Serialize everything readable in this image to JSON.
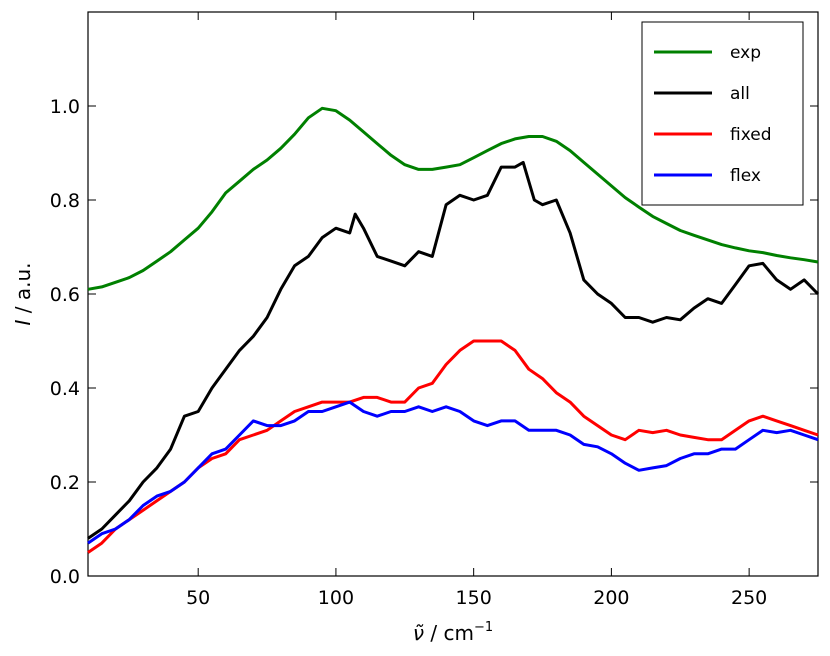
{
  "chart_data": {
    "type": "line",
    "xlabel": {
      "italic": "ν̃",
      "rest": " / cm",
      "sup": "−1"
    },
    "ylabel": {
      "italic": "I",
      "rest": " / a.u."
    },
    "xlim": [
      10,
      275
    ],
    "ylim": [
      0.0,
      1.2
    ],
    "xticks": [
      50,
      100,
      150,
      200,
      250
    ],
    "yticks": [
      0.0,
      0.2,
      0.4,
      0.6,
      0.8,
      1.0
    ],
    "ytick_labels": [
      "0.0",
      "0.2",
      "0.4",
      "0.6",
      "0.8",
      "1.0"
    ],
    "grid": false,
    "legend_position": "top-right",
    "series": [
      {
        "name": "exp",
        "color": "#008000",
        "points": [
          [
            10,
            0.61
          ],
          [
            15,
            0.615
          ],
          [
            20,
            0.625
          ],
          [
            25,
            0.635
          ],
          [
            30,
            0.65
          ],
          [
            35,
            0.67
          ],
          [
            40,
            0.69
          ],
          [
            45,
            0.715
          ],
          [
            50,
            0.74
          ],
          [
            55,
            0.775
          ],
          [
            60,
            0.815
          ],
          [
            65,
            0.84
          ],
          [
            70,
            0.865
          ],
          [
            75,
            0.885
          ],
          [
            80,
            0.91
          ],
          [
            85,
            0.94
          ],
          [
            90,
            0.975
          ],
          [
            95,
            0.995
          ],
          [
            100,
            0.99
          ],
          [
            105,
            0.97
          ],
          [
            110,
            0.945
          ],
          [
            115,
            0.92
          ],
          [
            120,
            0.895
          ],
          [
            125,
            0.875
          ],
          [
            130,
            0.865
          ],
          [
            135,
            0.865
          ],
          [
            140,
            0.87
          ],
          [
            145,
            0.875
          ],
          [
            150,
            0.89
          ],
          [
            155,
            0.905
          ],
          [
            160,
            0.92
          ],
          [
            165,
            0.93
          ],
          [
            170,
            0.935
          ],
          [
            175,
            0.935
          ],
          [
            180,
            0.925
          ],
          [
            185,
            0.905
          ],
          [
            190,
            0.88
          ],
          [
            195,
            0.855
          ],
          [
            200,
            0.83
          ],
          [
            205,
            0.805
          ],
          [
            210,
            0.785
          ],
          [
            215,
            0.765
          ],
          [
            220,
            0.75
          ],
          [
            225,
            0.735
          ],
          [
            230,
            0.725
          ],
          [
            235,
            0.715
          ],
          [
            240,
            0.705
          ],
          [
            245,
            0.698
          ],
          [
            250,
            0.692
          ],
          [
            255,
            0.688
          ],
          [
            260,
            0.682
          ],
          [
            265,
            0.677
          ],
          [
            270,
            0.673
          ],
          [
            275,
            0.668
          ]
        ]
      },
      {
        "name": "all",
        "color": "#000000",
        "points": [
          [
            10,
            0.08
          ],
          [
            15,
            0.1
          ],
          [
            20,
            0.13
          ],
          [
            25,
            0.16
          ],
          [
            30,
            0.2
          ],
          [
            35,
            0.23
          ],
          [
            40,
            0.27
          ],
          [
            45,
            0.34
          ],
          [
            50,
            0.35
          ],
          [
            55,
            0.4
          ],
          [
            60,
            0.44
          ],
          [
            65,
            0.48
          ],
          [
            70,
            0.51
          ],
          [
            75,
            0.55
          ],
          [
            80,
            0.61
          ],
          [
            85,
            0.66
          ],
          [
            90,
            0.68
          ],
          [
            95,
            0.72
          ],
          [
            100,
            0.74
          ],
          [
            105,
            0.73
          ],
          [
            107,
            0.77
          ],
          [
            110,
            0.74
          ],
          [
            115,
            0.68
          ],
          [
            120,
            0.67
          ],
          [
            125,
            0.66
          ],
          [
            130,
            0.69
          ],
          [
            135,
            0.68
          ],
          [
            140,
            0.79
          ],
          [
            145,
            0.81
          ],
          [
            150,
            0.8
          ],
          [
            155,
            0.81
          ],
          [
            160,
            0.87
          ],
          [
            165,
            0.87
          ],
          [
            168,
            0.88
          ],
          [
            172,
            0.8
          ],
          [
            175,
            0.79
          ],
          [
            180,
            0.8
          ],
          [
            185,
            0.73
          ],
          [
            190,
            0.63
          ],
          [
            195,
            0.6
          ],
          [
            200,
            0.58
          ],
          [
            205,
            0.55
          ],
          [
            210,
            0.55
          ],
          [
            215,
            0.54
          ],
          [
            220,
            0.55
          ],
          [
            225,
            0.545
          ],
          [
            230,
            0.57
          ],
          [
            235,
            0.59
          ],
          [
            240,
            0.58
          ],
          [
            245,
            0.62
          ],
          [
            250,
            0.66
          ],
          [
            255,
            0.665
          ],
          [
            260,
            0.63
          ],
          [
            265,
            0.61
          ],
          [
            270,
            0.63
          ],
          [
            275,
            0.6
          ]
        ]
      },
      {
        "name": "fixed",
        "color": "#ff0000",
        "points": [
          [
            10,
            0.05
          ],
          [
            15,
            0.07
          ],
          [
            20,
            0.1
          ],
          [
            25,
            0.12
          ],
          [
            30,
            0.14
          ],
          [
            35,
            0.16
          ],
          [
            40,
            0.18
          ],
          [
            45,
            0.2
          ],
          [
            50,
            0.23
          ],
          [
            55,
            0.25
          ],
          [
            60,
            0.26
          ],
          [
            65,
            0.29
          ],
          [
            70,
            0.3
          ],
          [
            75,
            0.31
          ],
          [
            80,
            0.33
          ],
          [
            85,
            0.35
          ],
          [
            90,
            0.36
          ],
          [
            95,
            0.37
          ],
          [
            100,
            0.37
          ],
          [
            105,
            0.37
          ],
          [
            110,
            0.38
          ],
          [
            115,
            0.38
          ],
          [
            120,
            0.37
          ],
          [
            125,
            0.37
          ],
          [
            130,
            0.4
          ],
          [
            135,
            0.41
          ],
          [
            140,
            0.45
          ],
          [
            145,
            0.48
          ],
          [
            150,
            0.5
          ],
          [
            155,
            0.5
          ],
          [
            160,
            0.5
          ],
          [
            165,
            0.48
          ],
          [
            170,
            0.44
          ],
          [
            175,
            0.42
          ],
          [
            180,
            0.39
          ],
          [
            185,
            0.37
          ],
          [
            190,
            0.34
          ],
          [
            195,
            0.32
          ],
          [
            200,
            0.3
          ],
          [
            205,
            0.29
          ],
          [
            210,
            0.31
          ],
          [
            215,
            0.305
          ],
          [
            220,
            0.31
          ],
          [
            225,
            0.3
          ],
          [
            230,
            0.295
          ],
          [
            235,
            0.29
          ],
          [
            240,
            0.29
          ],
          [
            245,
            0.31
          ],
          [
            250,
            0.33
          ],
          [
            255,
            0.34
          ],
          [
            260,
            0.33
          ],
          [
            265,
            0.32
          ],
          [
            270,
            0.31
          ],
          [
            275,
            0.3
          ]
        ]
      },
      {
        "name": "flex",
        "color": "#0000ff",
        "points": [
          [
            10,
            0.07
          ],
          [
            15,
            0.09
          ],
          [
            20,
            0.1
          ],
          [
            25,
            0.12
          ],
          [
            30,
            0.15
          ],
          [
            35,
            0.17
          ],
          [
            40,
            0.18
          ],
          [
            45,
            0.2
          ],
          [
            50,
            0.23
          ],
          [
            55,
            0.26
          ],
          [
            60,
            0.27
          ],
          [
            65,
            0.3
          ],
          [
            70,
            0.33
          ],
          [
            75,
            0.32
          ],
          [
            80,
            0.32
          ],
          [
            85,
            0.33
          ],
          [
            90,
            0.35
          ],
          [
            95,
            0.35
          ],
          [
            100,
            0.36
          ],
          [
            105,
            0.37
          ],
          [
            110,
            0.35
          ],
          [
            115,
            0.34
          ],
          [
            120,
            0.35
          ],
          [
            125,
            0.35
          ],
          [
            130,
            0.36
          ],
          [
            135,
            0.35
          ],
          [
            140,
            0.36
          ],
          [
            145,
            0.35
          ],
          [
            150,
            0.33
          ],
          [
            155,
            0.32
          ],
          [
            160,
            0.33
          ],
          [
            165,
            0.33
          ],
          [
            170,
            0.31
          ],
          [
            175,
            0.31
          ],
          [
            180,
            0.31
          ],
          [
            185,
            0.3
          ],
          [
            190,
            0.28
          ],
          [
            195,
            0.275
          ],
          [
            200,
            0.26
          ],
          [
            205,
            0.24
          ],
          [
            210,
            0.225
          ],
          [
            215,
            0.23
          ],
          [
            220,
            0.235
          ],
          [
            225,
            0.25
          ],
          [
            230,
            0.26
          ],
          [
            235,
            0.26
          ],
          [
            240,
            0.27
          ],
          [
            245,
            0.27
          ],
          [
            250,
            0.29
          ],
          [
            255,
            0.31
          ],
          [
            260,
            0.305
          ],
          [
            265,
            0.31
          ],
          [
            270,
            0.3
          ],
          [
            275,
            0.29
          ]
        ]
      }
    ]
  }
}
